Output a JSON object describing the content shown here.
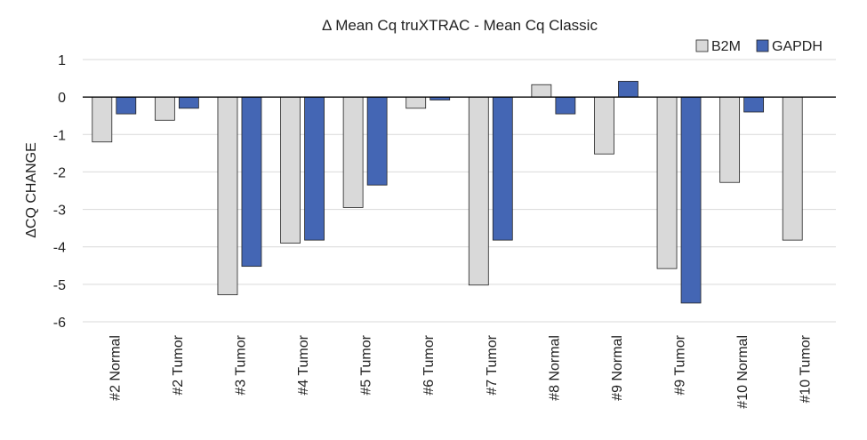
{
  "chart_data": {
    "type": "bar",
    "title": "Δ Mean Cq truXTRAC - Mean Cq Classic",
    "xlabel": "",
    "ylabel": "ΔCQ CHANGE",
    "ylim": [
      -6,
      1
    ],
    "yticks": [
      1,
      0,
      -1,
      -2,
      -3,
      -4,
      -5,
      -6
    ],
    "grid": true,
    "legend_position": "top-right",
    "categories": [
      "#2 Normal",
      "#2 Tumor",
      "#3 Tumor",
      "#4 Tumor",
      "#5 Tumor",
      "#6 Tumor",
      "#7 Tumor",
      "#8 Normal",
      "#9 Normal",
      "#9 Tumor",
      "#10 Normal",
      "#10 Tumor"
    ],
    "series": [
      {
        "name": "B2M",
        "color": "#d9d9d9",
        "values": [
          -1.2,
          -0.62,
          -5.28,
          -3.9,
          -2.95,
          -0.3,
          -5.02,
          0.33,
          -1.52,
          -4.58,
          -2.28,
          -3.82
        ]
      },
      {
        "name": "GAPDH",
        "color": "#4466b4",
        "values": [
          -0.45,
          -0.3,
          -4.52,
          -3.82,
          -2.35,
          -0.08,
          -3.82,
          -0.45,
          0.42,
          -5.5,
          -0.4,
          null
        ]
      }
    ]
  }
}
